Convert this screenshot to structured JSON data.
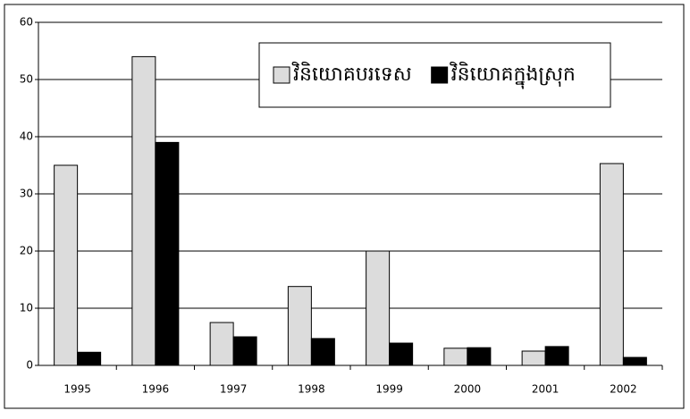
{
  "chart_data": {
    "type": "bar",
    "categories": [
      "1995",
      "1996",
      "1997",
      "1998",
      "1999",
      "2000",
      "2001",
      "2002"
    ],
    "series": [
      {
        "name": "វិនិយោគបរទេស",
        "color": "#dcdcdc",
        "values": [
          35,
          54,
          7.5,
          13.8,
          20,
          3,
          2.5,
          35.3
        ]
      },
      {
        "name": "វិនិយោគក្នុងស្រុក",
        "color": "#000000",
        "values": [
          2.3,
          39,
          5,
          4.7,
          3.9,
          3.1,
          3.3,
          1.4
        ]
      }
    ],
    "ylim": [
      0,
      60
    ],
    "yticks": [
      0,
      10,
      20,
      30,
      40,
      50,
      60
    ],
    "grid": true,
    "legend": "top-right"
  }
}
